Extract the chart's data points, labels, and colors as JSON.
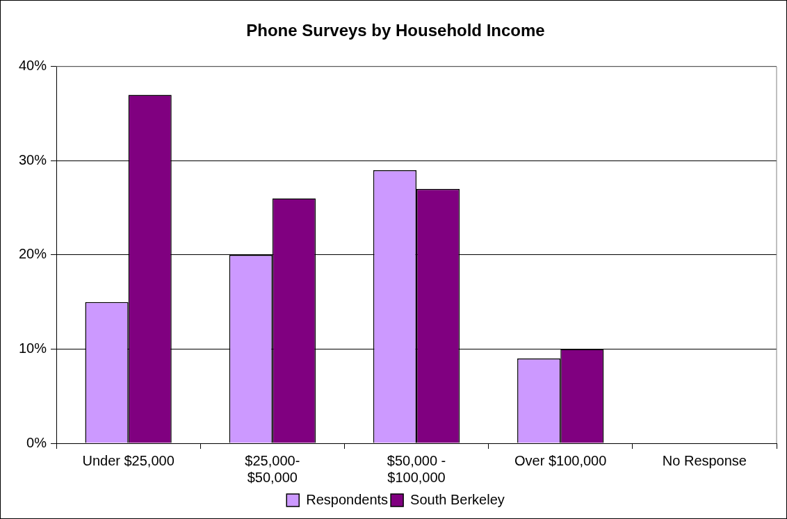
{
  "chart_data": {
    "type": "bar",
    "title": "Phone Surveys by Household Income",
    "categories": [
      "Under $25,000",
      "$25,000- $50,000",
      "$50,000 - $100,000",
      "Over $100,000",
      "No Response"
    ],
    "series": [
      {
        "name": "Respondents",
        "color": "#cc99ff",
        "values": [
          15,
          20,
          29,
          9,
          null
        ]
      },
      {
        "name": "South Berkeley",
        "color": "#800080",
        "values": [
          37,
          26,
          27,
          10,
          null
        ]
      }
    ],
    "ylim": [
      0,
      40
    ],
    "yticks": [
      {
        "value": 0,
        "label": "0%"
      },
      {
        "value": 10,
        "label": "10%"
      },
      {
        "value": 20,
        "label": "20%"
      },
      {
        "value": 30,
        "label": "30%"
      },
      {
        "value": 40,
        "label": "40%"
      }
    ],
    "grid": "y",
    "legend": "bottom"
  }
}
